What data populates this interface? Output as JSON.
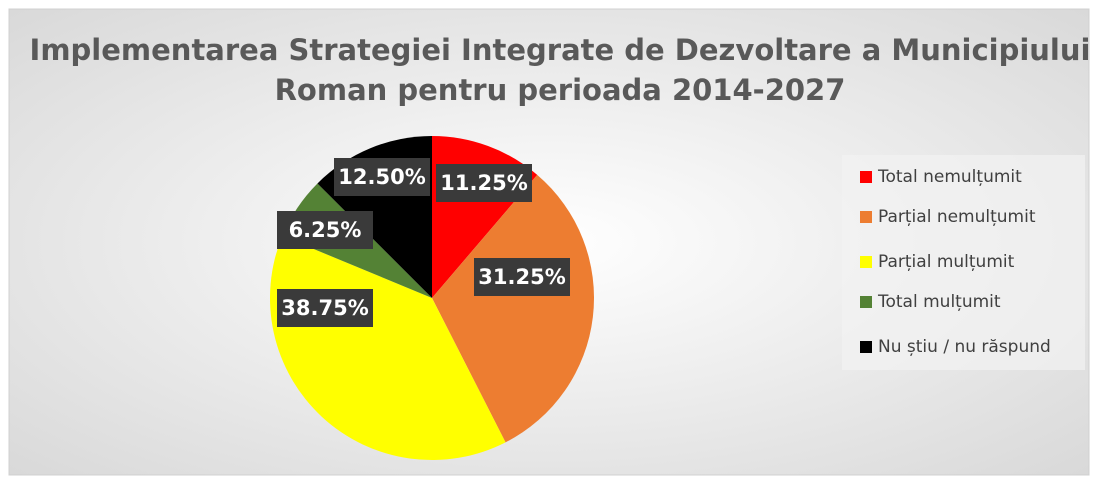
{
  "chart_data": {
    "type": "pie",
    "title": "Implementarea Strategiei Integrate de Dezvoltare a Municipiului Roman pentru perioada 2014-2027",
    "categories": [
      "Total nemulțumit",
      "Parțial nemulțumit",
      "Parțial mulțumit",
      "Total mulțumit",
      "Nu știu / nu răspund"
    ],
    "values": [
      11.25,
      31.25,
      38.75,
      6.25,
      12.5
    ],
    "value_labels": [
      "11.25%",
      "31.25%",
      "38.75%",
      "6.25%",
      "12.50%"
    ],
    "colors": [
      "#ff0000",
      "#ed7d31",
      "#ffff00",
      "#548235",
      "#000000"
    ],
    "legend": "right"
  }
}
